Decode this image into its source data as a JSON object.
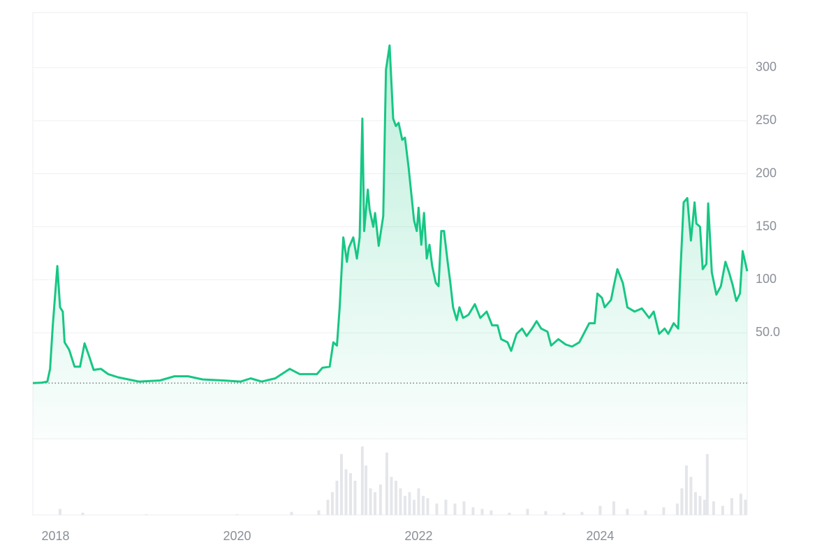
{
  "chart_data": {
    "type": "line",
    "series": [
      {
        "color": "#16c784",
        "x": [
          2017.75,
          2017.85,
          2017.91,
          2017.94,
          2017.97,
          2018.02,
          2018.05,
          2018.08,
          2018.1,
          2018.15,
          2018.21,
          2018.27,
          2018.32,
          2018.37,
          2018.42,
          2018.5,
          2018.58,
          2018.69,
          2018.92,
          2019.15,
          2019.31,
          2019.46,
          2019.62,
          2019.85,
          2020.04,
          2020.15,
          2020.27,
          2020.42,
          2020.58,
          2020.69,
          2020.88,
          2020.94,
          2021.02,
          2021.06,
          2021.1,
          2021.13,
          2021.17,
          2021.21,
          2021.23,
          2021.28,
          2021.32,
          2021.35,
          2021.38,
          2021.4,
          2021.44,
          2021.46,
          2021.5,
          2021.52,
          2021.56,
          2021.61,
          2021.64,
          2021.68,
          2021.72,
          2021.75,
          2021.78,
          2021.82,
          2021.85,
          2021.89,
          2021.95,
          2021.98,
          2022.0,
          2022.03,
          2022.06,
          2022.09,
          2022.12,
          2022.15,
          2022.19,
          2022.22,
          2022.25,
          2022.28,
          2022.32,
          2022.35,
          2022.38,
          2022.42,
          2022.45,
          2022.49,
          2022.55,
          2022.62,
          2022.68,
          2022.75,
          2022.81,
          2022.87,
          2022.91,
          2022.98,
          2023.02,
          2023.08,
          2023.14,
          2023.19,
          2023.25,
          2023.3,
          2023.35,
          2023.42,
          2023.46,
          2023.54,
          2023.62,
          2023.69,
          2023.77,
          2023.88,
          2023.94,
          2023.97,
          2024.02,
          2024.05,
          2024.12,
          2024.15,
          2024.19,
          2024.25,
          2024.3,
          2024.38,
          2024.46,
          2024.54,
          2024.59,
          2024.65,
          2024.71,
          2024.75,
          2024.81,
          2024.86,
          2024.88,
          2024.92,
          2024.96,
          2025.0,
          2025.04,
          2025.06,
          2025.1,
          2025.13,
          2025.17,
          2025.19,
          2025.23,
          2025.28,
          2025.33,
          2025.38,
          2025.42,
          2025.46,
          2025.5,
          2025.54,
          2025.57,
          2025.62
        ],
        "values": [
          2.6,
          3,
          4,
          16,
          57,
          113,
          74,
          70,
          41,
          34,
          18,
          18,
          40,
          28,
          15,
          16,
          11,
          8,
          4,
          5,
          9,
          9,
          6,
          5,
          4,
          7,
          4,
          7,
          16,
          11,
          11,
          17,
          18,
          41,
          38,
          74,
          140,
          117,
          130,
          140,
          120,
          140,
          252,
          146,
          185,
          166,
          150,
          163,
          132,
          160,
          298,
          321,
          252,
          245,
          248,
          232,
          234,
          206,
          156,
          146,
          168,
          133,
          163,
          120,
          133,
          113,
          97,
          94,
          146,
          146,
          117,
          97,
          74,
          62,
          74,
          64,
          67,
          77,
          64,
          70,
          57,
          57,
          44,
          41,
          33,
          49,
          54,
          47,
          54,
          61,
          54,
          51,
          38,
          44,
          39,
          37,
          41,
          59,
          59,
          87,
          83,
          74,
          81,
          94,
          110,
          97,
          74,
          70,
          73,
          64,
          70,
          49,
          54,
          49,
          59,
          54,
          100,
          173,
          177,
          137,
          173,
          153,
          150,
          110,
          115,
          172,
          107,
          86,
          94,
          117,
          107,
          95,
          80,
          87,
          127,
          108
        ]
      }
    ],
    "baseline": 2.6,
    "volume": {
      "color": "#e4e6ea",
      "x": [
        2018.05,
        2018.3,
        2019.0,
        2020.0,
        2020.6,
        2020.9,
        2021.0,
        2021.05,
        2021.1,
        2021.15,
        2021.2,
        2021.25,
        2021.3,
        2021.38,
        2021.42,
        2021.47,
        2021.52,
        2021.58,
        2021.65,
        2021.7,
        2021.75,
        2021.8,
        2021.85,
        2021.9,
        2021.95,
        2022.0,
        2022.05,
        2022.1,
        2022.2,
        2022.3,
        2022.4,
        2022.5,
        2022.6,
        2022.7,
        2022.8,
        2023.0,
        2023.2,
        2023.4,
        2023.6,
        2023.8,
        2024.0,
        2024.15,
        2024.3,
        2024.5,
        2024.7,
        2024.85,
        2024.9,
        2024.95,
        2025.0,
        2025.05,
        2025.1,
        2025.15,
        2025.18,
        2025.25,
        2025.35,
        2025.45,
        2025.55,
        2025.6
      ],
      "values": [
        8,
        3,
        1,
        1,
        4,
        6,
        20,
        30,
        45,
        80,
        60,
        55,
        45,
        90,
        65,
        35,
        30,
        40,
        82,
        50,
        45,
        35,
        25,
        30,
        20,
        35,
        25,
        22,
        15,
        20,
        15,
        18,
        10,
        8,
        6,
        3,
        8,
        5,
        3,
        4,
        12,
        18,
        8,
        6,
        10,
        15,
        35,
        65,
        50,
        30,
        25,
        20,
        80,
        18,
        12,
        22,
        28,
        20
      ],
      "ylim": [
        0,
        100
      ]
    },
    "xlim": [
      2017.75,
      2025.62
    ],
    "xticks": [
      2018,
      2020,
      2022,
      2024
    ],
    "ylim": [
      -50,
      352
    ],
    "yticks": [
      {
        "value": 50,
        "label": "50.0"
      },
      100,
      150,
      200,
      250,
      300
    ],
    "grid": true
  }
}
